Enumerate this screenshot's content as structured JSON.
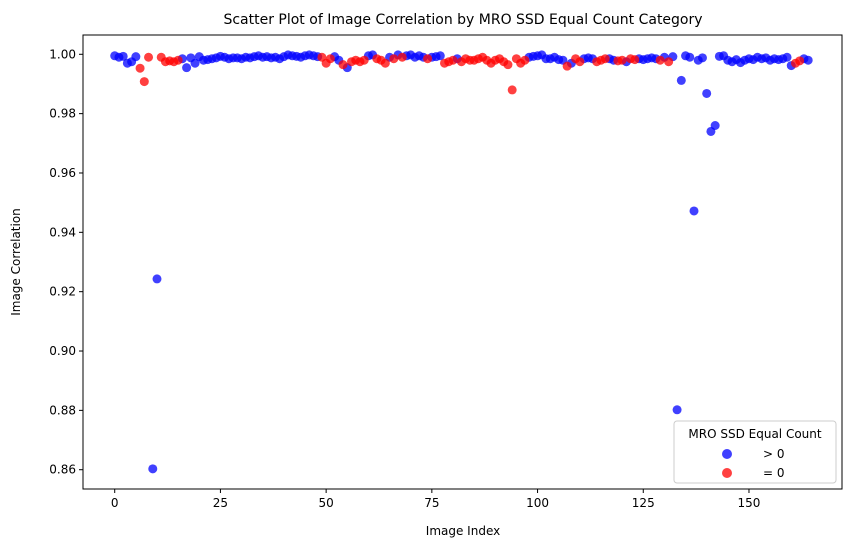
{
  "chart_data": {
    "type": "scatter",
    "title": "Scatter Plot of Image Correlation by MRO SSD Equal Count Category",
    "xlabel": "Image Index",
    "ylabel": "Image Correlation",
    "xlim": [
      -7.5,
      172
    ],
    "ylim": [
      0.8535,
      1.0065
    ],
    "xticks": [
      0,
      25,
      50,
      75,
      100,
      125,
      150
    ],
    "yticks": [
      0.86,
      0.88,
      0.9,
      0.92,
      0.94,
      0.96,
      0.98,
      1.0
    ],
    "grid": false,
    "legend": {
      "title": "MRO SSD Equal Count",
      "location": "lower-right"
    },
    "series": [
      {
        "name": "> 0",
        "color": "#0000ff",
        "points": [
          [
            0,
            0.9995
          ],
          [
            1,
            0.999
          ],
          [
            2,
            0.9993
          ],
          [
            3,
            0.997
          ],
          [
            4,
            0.9975
          ],
          [
            5,
            0.9992
          ],
          [
            9,
            0.8603
          ],
          [
            10,
            0.9243
          ],
          [
            16,
            0.9985
          ],
          [
            17,
            0.9955
          ],
          [
            18,
            0.9988
          ],
          [
            19,
            0.997
          ],
          [
            20,
            0.9992
          ],
          [
            21,
            0.998
          ],
          [
            22,
            0.9982
          ],
          [
            23,
            0.9985
          ],
          [
            24,
            0.9988
          ],
          [
            25,
            0.9993
          ],
          [
            26,
            0.999
          ],
          [
            27,
            0.9985
          ],
          [
            28,
            0.9988
          ],
          [
            29,
            0.9988
          ],
          [
            30,
            0.9985
          ],
          [
            31,
            0.999
          ],
          [
            32,
            0.9988
          ],
          [
            33,
            0.9992
          ],
          [
            34,
            0.9995
          ],
          [
            35,
            0.999
          ],
          [
            36,
            0.9992
          ],
          [
            37,
            0.9988
          ],
          [
            38,
            0.999
          ],
          [
            39,
            0.9985
          ],
          [
            40,
            0.9992
          ],
          [
            41,
            0.9998
          ],
          [
            42,
            0.9995
          ],
          [
            43,
            0.9993
          ],
          [
            44,
            0.999
          ],
          [
            45,
            0.9995
          ],
          [
            46,
            0.9998
          ],
          [
            47,
            0.9995
          ],
          [
            48,
            0.9992
          ],
          [
            52,
            0.9992
          ],
          [
            53,
            0.998
          ],
          [
            55,
            0.9955
          ],
          [
            60,
            0.9995
          ],
          [
            61,
            0.9998
          ],
          [
            65,
            0.999
          ],
          [
            67,
            0.9998
          ],
          [
            69,
            0.9995
          ],
          [
            70,
            0.9998
          ],
          [
            71,
            0.999
          ],
          [
            72,
            0.9995
          ],
          [
            73,
            0.999
          ],
          [
            75,
            0.999
          ],
          [
            76,
            0.9992
          ],
          [
            77,
            0.9995
          ],
          [
            81,
            0.9985
          ],
          [
            98,
            0.999
          ],
          [
            99,
            0.9993
          ],
          [
            100,
            0.9995
          ],
          [
            101,
            0.9998
          ],
          [
            102,
            0.9985
          ],
          [
            103,
            0.9985
          ],
          [
            104,
            0.999
          ],
          [
            105,
            0.9982
          ],
          [
            106,
            0.998
          ],
          [
            108,
            0.997
          ],
          [
            111,
            0.9985
          ],
          [
            112,
            0.9988
          ],
          [
            113,
            0.9985
          ],
          [
            117,
            0.9985
          ],
          [
            118,
            0.998
          ],
          [
            121,
            0.9975
          ],
          [
            124,
            0.9985
          ],
          [
            125,
            0.9982
          ],
          [
            126,
            0.9985
          ],
          [
            127,
            0.9988
          ],
          [
            128,
            0.9985
          ],
          [
            130,
            0.999
          ],
          [
            132,
            0.9992
          ],
          [
            133,
            0.8802
          ],
          [
            134,
            0.9912
          ],
          [
            135,
            0.9995
          ],
          [
            136,
            0.999
          ],
          [
            137,
            0.9472
          ],
          [
            138,
            0.998
          ],
          [
            139,
            0.9988
          ],
          [
            140,
            0.9868
          ],
          [
            141,
            0.974
          ],
          [
            142,
            0.976
          ],
          [
            143,
            0.9993
          ],
          [
            144,
            0.9995
          ],
          [
            145,
            0.998
          ],
          [
            146,
            0.9975
          ],
          [
            147,
            0.9982
          ],
          [
            148,
            0.9972
          ],
          [
            149,
            0.998
          ],
          [
            150,
            0.9985
          ],
          [
            151,
            0.9982
          ],
          [
            152,
            0.999
          ],
          [
            153,
            0.9985
          ],
          [
            154,
            0.9988
          ],
          [
            155,
            0.998
          ],
          [
            156,
            0.9985
          ],
          [
            157,
            0.9982
          ],
          [
            158,
            0.9985
          ],
          [
            159,
            0.999
          ],
          [
            160,
            0.9962
          ],
          [
            163,
            0.9985
          ],
          [
            164,
            0.998
          ]
        ]
      },
      {
        "name": "= 0",
        "color": "#ff0000",
        "points": [
          [
            6,
            0.9953
          ],
          [
            7,
            0.9908
          ],
          [
            8,
            0.999
          ],
          [
            11,
            0.999
          ],
          [
            12,
            0.9975
          ],
          [
            13,
            0.9978
          ],
          [
            14,
            0.9975
          ],
          [
            15,
            0.998
          ],
          [
            49,
            0.999
          ],
          [
            50,
            0.997
          ],
          [
            51,
            0.9985
          ],
          [
            54,
            0.9965
          ],
          [
            56,
            0.9975
          ],
          [
            57,
            0.998
          ],
          [
            58,
            0.9975
          ],
          [
            59,
            0.998
          ],
          [
            62,
            0.9985
          ],
          [
            63,
            0.998
          ],
          [
            64,
            0.997
          ],
          [
            66,
            0.9985
          ],
          [
            68,
            0.999
          ],
          [
            74,
            0.9985
          ],
          [
            78,
            0.997
          ],
          [
            79,
            0.9975
          ],
          [
            80,
            0.998
          ],
          [
            82,
            0.9975
          ],
          [
            83,
            0.9985
          ],
          [
            84,
            0.998
          ],
          [
            85,
            0.998
          ],
          [
            86,
            0.9985
          ],
          [
            87,
            0.999
          ],
          [
            88,
            0.998
          ],
          [
            89,
            0.997
          ],
          [
            90,
            0.998
          ],
          [
            91,
            0.9985
          ],
          [
            92,
            0.9975
          ],
          [
            93,
            0.9965
          ],
          [
            94,
            0.988
          ],
          [
            95,
            0.9985
          ],
          [
            96,
            0.997
          ],
          [
            97,
            0.998
          ],
          [
            107,
            0.996
          ],
          [
            109,
            0.9985
          ],
          [
            110,
            0.9975
          ],
          [
            114,
            0.9975
          ],
          [
            115,
            0.998
          ],
          [
            116,
            0.9985
          ],
          [
            119,
            0.9978
          ],
          [
            120,
            0.998
          ],
          [
            122,
            0.9985
          ],
          [
            123,
            0.9982
          ],
          [
            129,
            0.998
          ],
          [
            131,
            0.9975
          ],
          [
            161,
            0.997
          ],
          [
            162,
            0.9978
          ]
        ]
      }
    ]
  }
}
